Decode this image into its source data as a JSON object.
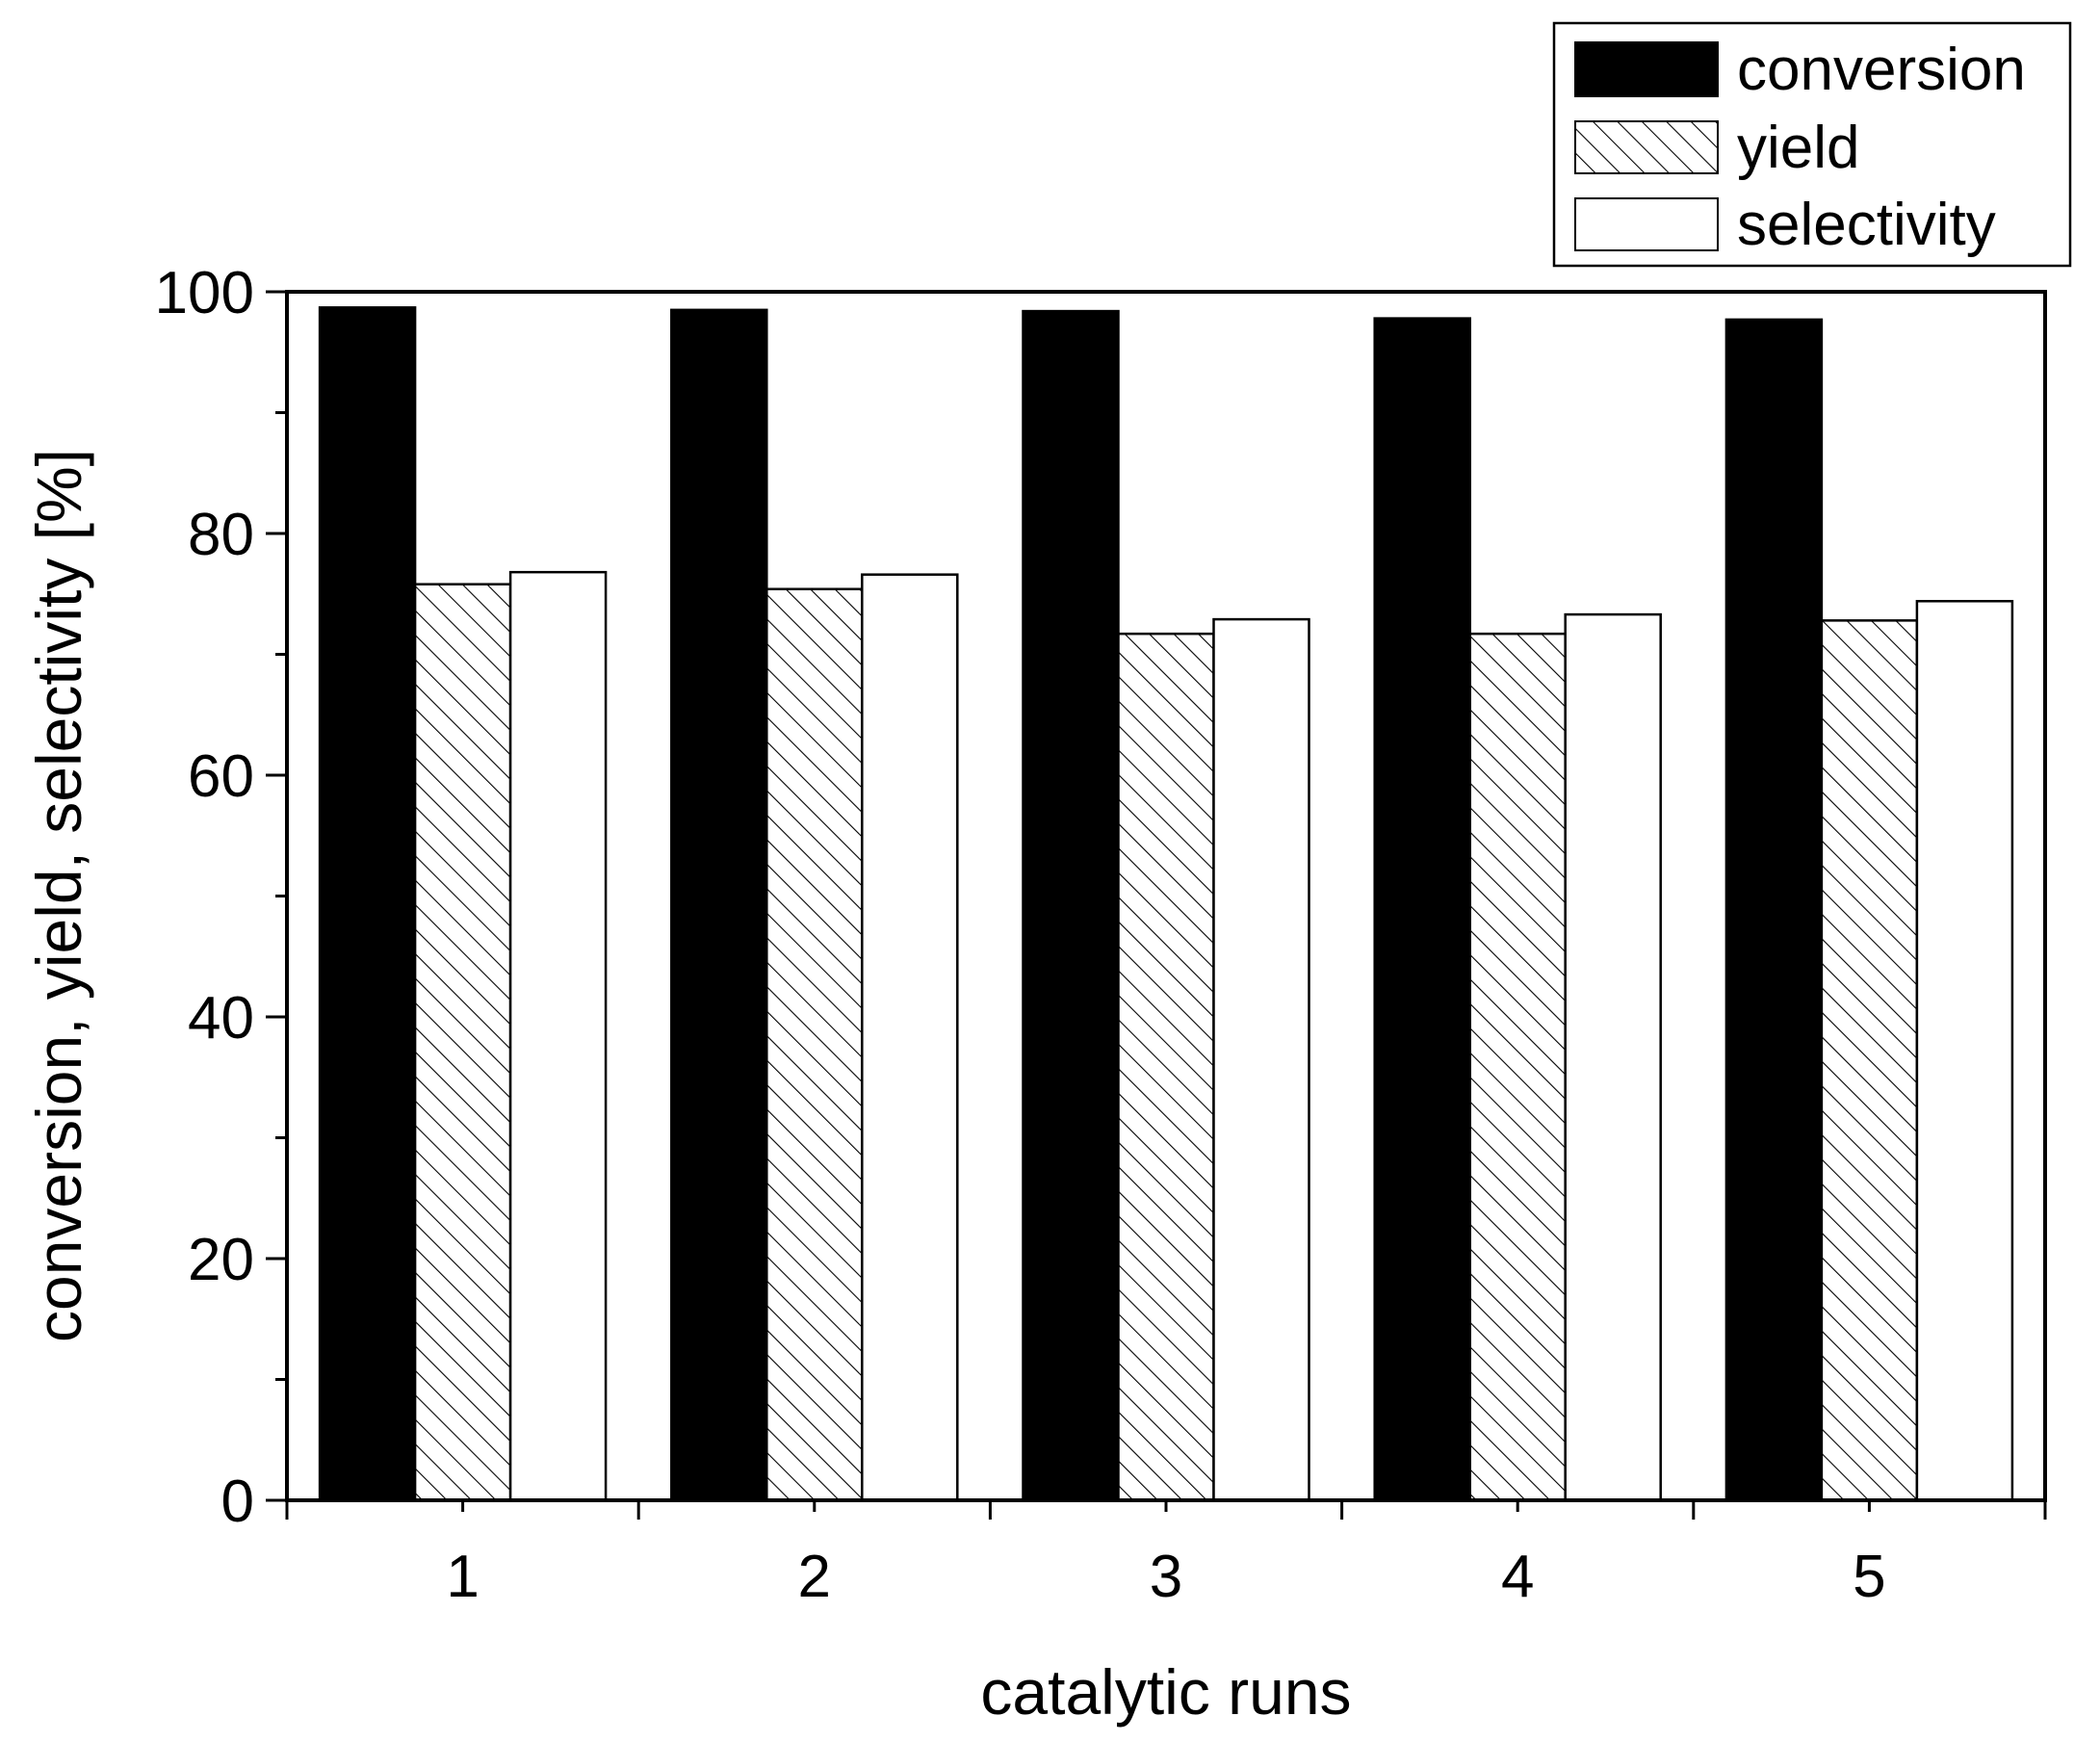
{
  "chart_data": {
    "type": "bar",
    "xlabel": "catalytic runs",
    "ylabel": "conversion, yield, selectivity [%]",
    "categories": [
      "1",
      "2",
      "3",
      "4",
      "5"
    ],
    "ylim": [
      0,
      100
    ],
    "yticks": [
      "0",
      "20",
      "40",
      "60",
      "80",
      "100"
    ],
    "grid": false,
    "legend_position": "top-right",
    "series": [
      {
        "name": "conversion",
        "fill": "solid",
        "color": "#000000",
        "values": [
          98.7,
          98.5,
          98.4,
          97.8,
          97.7
        ]
      },
      {
        "name": "yield",
        "fill": "hatched",
        "color": "#000000",
        "values": [
          75.8,
          75.4,
          71.7,
          71.7,
          72.8
        ]
      },
      {
        "name": "selectivity",
        "fill": "empty",
        "color": "#ffffff",
        "values": [
          76.8,
          76.6,
          72.9,
          73.3,
          74.4
        ]
      }
    ]
  }
}
